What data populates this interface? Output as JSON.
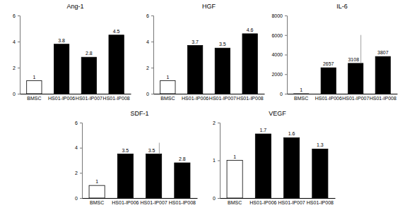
{
  "chart_data": [
    {
      "type": "bar",
      "title": "Ang-1",
      "categories": [
        "BMSC",
        "HS01-IP006",
        "HS01-IP007",
        "HS01-IP008"
      ],
      "values": [
        1,
        3.8,
        2.8,
        4.5
      ],
      "colors": [
        "#ffffff",
        "#000000",
        "#000000",
        "#000000"
      ],
      "ylim": [
        0,
        6
      ],
      "yticks": [
        0,
        2,
        4,
        6
      ],
      "data_labels": true
    },
    {
      "type": "bar",
      "title": "HGF",
      "categories": [
        "BMSC",
        "HS01-IP006",
        "HS01-IP007",
        "HS01-IP008"
      ],
      "values": [
        1,
        3.7,
        3.5,
        4.6
      ],
      "colors": [
        "#ffffff",
        "#000000",
        "#000000",
        "#000000"
      ],
      "ylim": [
        0,
        6
      ],
      "yticks": [
        0,
        2,
        4,
        6
      ],
      "data_labels": true
    },
    {
      "type": "bar",
      "title": "IL-6",
      "categories": [
        "BMSC",
        "HS01-IP006",
        "HS01-IP007",
        "HS01-IP008"
      ],
      "values": [
        1,
        2657,
        3108,
        3807
      ],
      "errors": [
        null,
        null,
        2900,
        null
      ],
      "colors": [
        "#ffffff",
        "#000000",
        "#000000",
        "#000000"
      ],
      "ylim": [
        0,
        8000
      ],
      "yticks": [
        0,
        2000,
        4000,
        6000,
        8000
      ],
      "data_labels": true
    },
    {
      "type": "bar",
      "title": "SDF-1",
      "categories": [
        "BMSC",
        "HS01-IP006",
        "HS01-IP007",
        "HS01-IP008"
      ],
      "values": [
        1,
        3.5,
        3.5,
        2.8
      ],
      "errors": [
        null,
        null,
        0.9,
        null
      ],
      "colors": [
        "#ffffff",
        "#000000",
        "#000000",
        "#000000"
      ],
      "ylim": [
        0,
        6
      ],
      "yticks": [
        0,
        2,
        4,
        6
      ],
      "data_labels": true
    },
    {
      "type": "bar",
      "title": "VEGF",
      "categories": [
        "BMSC",
        "HS01-IP006",
        "HS01-IP007",
        "HS01-IP008"
      ],
      "values": [
        1,
        1.7,
        1.6,
        1.3
      ],
      "colors": [
        "#ffffff",
        "#000000",
        "#000000",
        "#000000"
      ],
      "ylim": [
        0,
        2
      ],
      "yticks": [
        0,
        1,
        2
      ],
      "data_labels": true
    }
  ]
}
